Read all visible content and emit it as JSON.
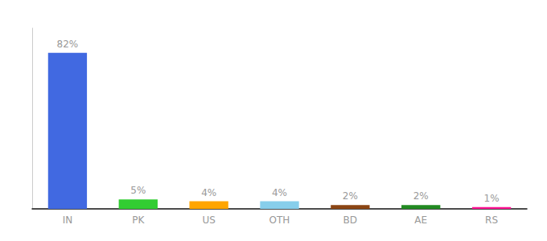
{
  "chart_data": {
    "type": "bar",
    "categories": [
      "IN",
      "PK",
      "US",
      "OTH",
      "BD",
      "AE",
      "RS"
    ],
    "values": [
      82,
      5,
      4,
      4,
      2,
      2,
      1
    ],
    "value_labels": [
      "82%",
      "5%",
      "4%",
      "4%",
      "2%",
      "2%",
      "1%"
    ],
    "colors": [
      "#4169e1",
      "#32cd32",
      "#ffa500",
      "#87ceeb",
      "#8b4513",
      "#228b22",
      "#ff1493"
    ],
    "ylim": [
      0,
      95
    ],
    "data_labels": true,
    "tick_labels": "x",
    "grid": false
  }
}
